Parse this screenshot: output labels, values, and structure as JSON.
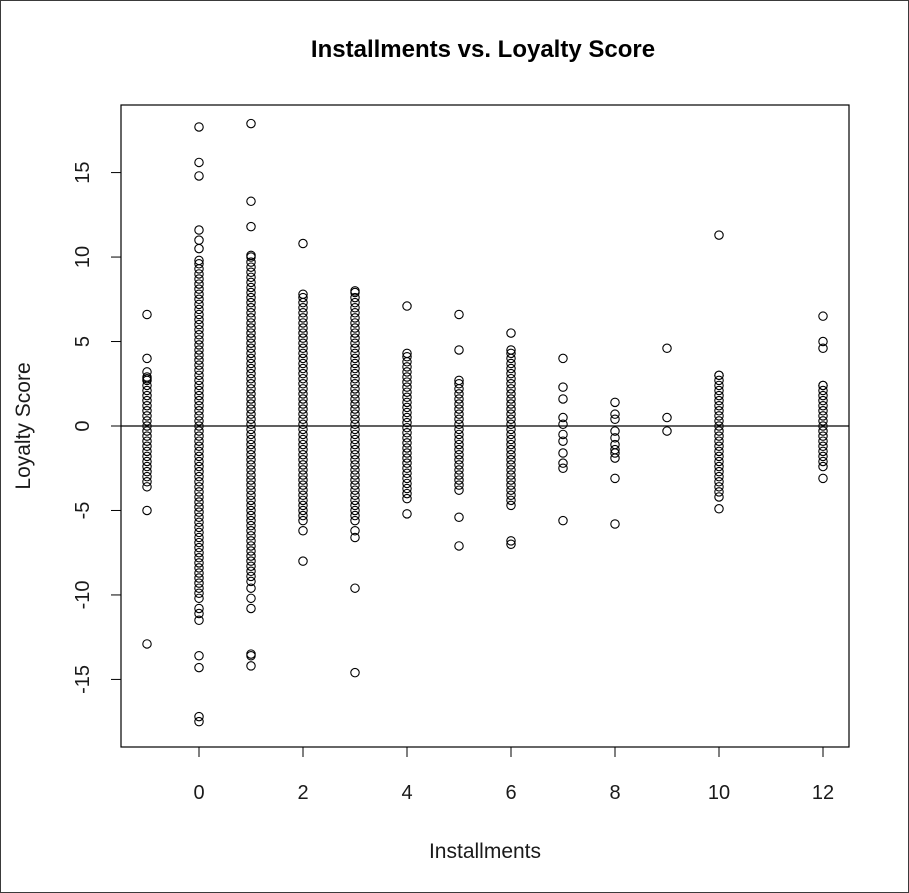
{
  "chart_data": {
    "type": "scatter",
    "title": "Installments vs. Loyalty Score",
    "xlabel": "Installments",
    "ylabel": "Loyalty Score",
    "xlim": [
      -1.5,
      12.5
    ],
    "ylim": [
      -19,
      19
    ],
    "xticks": [
      0,
      2,
      4,
      6,
      8,
      10,
      12
    ],
    "yticks": [
      -15,
      -10,
      -5,
      0,
      5,
      10,
      15
    ],
    "reference_line": {
      "type": "horizontal",
      "y": 0
    },
    "grid": false,
    "legend": "none",
    "marker": "open-circle",
    "columns": [
      {
        "x": -1,
        "band": [
          -3.6,
          2.8
        ],
        "outliers": [
          6.6,
          4.0,
          3.2,
          2.9,
          -5.0,
          -12.9
        ]
      },
      {
        "x": 0,
        "band": [
          -10.2,
          9.8
        ],
        "outliers": [
          17.7,
          15.6,
          14.8,
          11.6,
          11.0,
          10.5,
          -10.8,
          -11.1,
          -11.5,
          -13.6,
          -14.3,
          -17.2,
          -17.5
        ]
      },
      {
        "x": 1,
        "band": [
          -9.2,
          10.1
        ],
        "outliers": [
          17.9,
          13.3,
          11.8,
          -9.6,
          -10.2,
          -10.8,
          -13.5,
          -13.6,
          -14.2
        ]
      },
      {
        "x": 2,
        "band": [
          -5.6,
          7.8
        ],
        "outliers": [
          10.8,
          -6.2,
          -8.0
        ]
      },
      {
        "x": 3,
        "band": [
          -5.6,
          8.0
        ],
        "outliers": [
          -6.2,
          -6.6,
          -9.6,
          -14.6
        ]
      },
      {
        "x": 4,
        "band": [
          -4.3,
          4.3
        ],
        "outliers": [
          7.1,
          -5.2
        ]
      },
      {
        "x": 5,
        "band": [
          -3.8,
          2.7
        ],
        "outliers": [
          6.6,
          4.5,
          -5.4,
          -7.1
        ]
      },
      {
        "x": 6,
        "band": [
          -4.7,
          4.5
        ],
        "outliers": [
          5.5,
          -6.8,
          -7.0
        ]
      },
      {
        "x": 7,
        "band": [],
        "outliers": [
          4.0,
          2.3,
          1.6,
          0.5,
          0.1,
          -0.5,
          -0.9,
          -1.6,
          -2.2,
          -2.5,
          -5.6
        ]
      },
      {
        "x": 8,
        "band": [],
        "outliers": [
          1.4,
          0.7,
          0.4,
          -0.3,
          -0.7,
          -1.1,
          -1.4,
          -1.6,
          -1.9,
          -3.1,
          -5.8
        ]
      },
      {
        "x": 9,
        "band": [],
        "outliers": [
          4.6,
          0.5,
          -0.3
        ]
      },
      {
        "x": 10,
        "band": [
          -4.2,
          3.0
        ],
        "outliers": [
          11.3,
          -4.9
        ]
      },
      {
        "x": 12,
        "band": [
          -2.4,
          2.4
        ],
        "outliers": [
          6.5,
          5.0,
          4.6,
          -3.1
        ]
      }
    ]
  }
}
